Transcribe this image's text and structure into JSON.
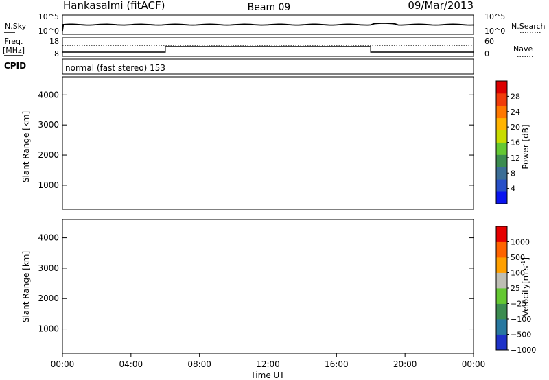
{
  "header": {
    "station": "Hankasalmi (fitACF)",
    "beam": "Beam 09",
    "date": "09/Mar/2013"
  },
  "top_panels": {
    "nsky": {
      "label": "N.Sky",
      "right_label": "N.Search",
      "left_ticks": [
        "10^5",
        "10^0"
      ],
      "right_ticks": [
        "10^5",
        "10^0"
      ]
    },
    "freq": {
      "label_line1": "Freq.",
      "label_line2": "[MHz]",
      "right_label": "Nave",
      "left_ticks": [
        "18",
        "8"
      ],
      "right_ticks": [
        "60",
        "0"
      ]
    },
    "cpid": {
      "label": "CPID",
      "value": "normal (fast stereo) 153"
    }
  },
  "chart_data": [
    {
      "type": "heatmap",
      "panel": "power",
      "ylabel": "Slant Range [km]",
      "ylim": [
        200,
        4600
      ],
      "yticks": [
        1000,
        2000,
        3000,
        4000
      ],
      "colorbar_label": "Power [dB]",
      "colorbar_ticks": [
        4,
        8,
        12,
        16,
        20,
        24,
        28
      ],
      "colorbar_range": [
        0,
        32
      ],
      "colors": [
        "#0a14f0",
        "#2850c8",
        "#3c6e96",
        "#3c8c50",
        "#64c832",
        "#c8dc00",
        "#ffb400",
        "#ff7800",
        "#f03c0a",
        "#dc0000"
      ],
      "grid": false
    },
    {
      "type": "heatmap",
      "panel": "velocity",
      "ylabel": "Slant Range [km]",
      "ylim": [
        200,
        4600
      ],
      "yticks": [
        1000,
        2000,
        3000,
        4000
      ],
      "colorbar_label": "Velocity",
      "colorbar_unit": "[m s",
      "colorbar_exp": "-1",
      "colorbar_ticks": [
        "1000",
        "500",
        "100",
        "25",
        "−25",
        "−100",
        "−500",
        "−1000"
      ],
      "colors": [
        "#1e32c8",
        "#2878a0",
        "#3c8c50",
        "#64c832",
        "#bebeb4",
        "#ffa000",
        "#ff6400",
        "#e60000"
      ],
      "grid": false
    }
  ],
  "time_axis": {
    "xlabel": "Time UT",
    "ticks": [
      "00:00",
      "04:00",
      "08:00",
      "12:00",
      "16:00",
      "20:00",
      "00:00"
    ],
    "xlim_hours": [
      0,
      24
    ]
  }
}
